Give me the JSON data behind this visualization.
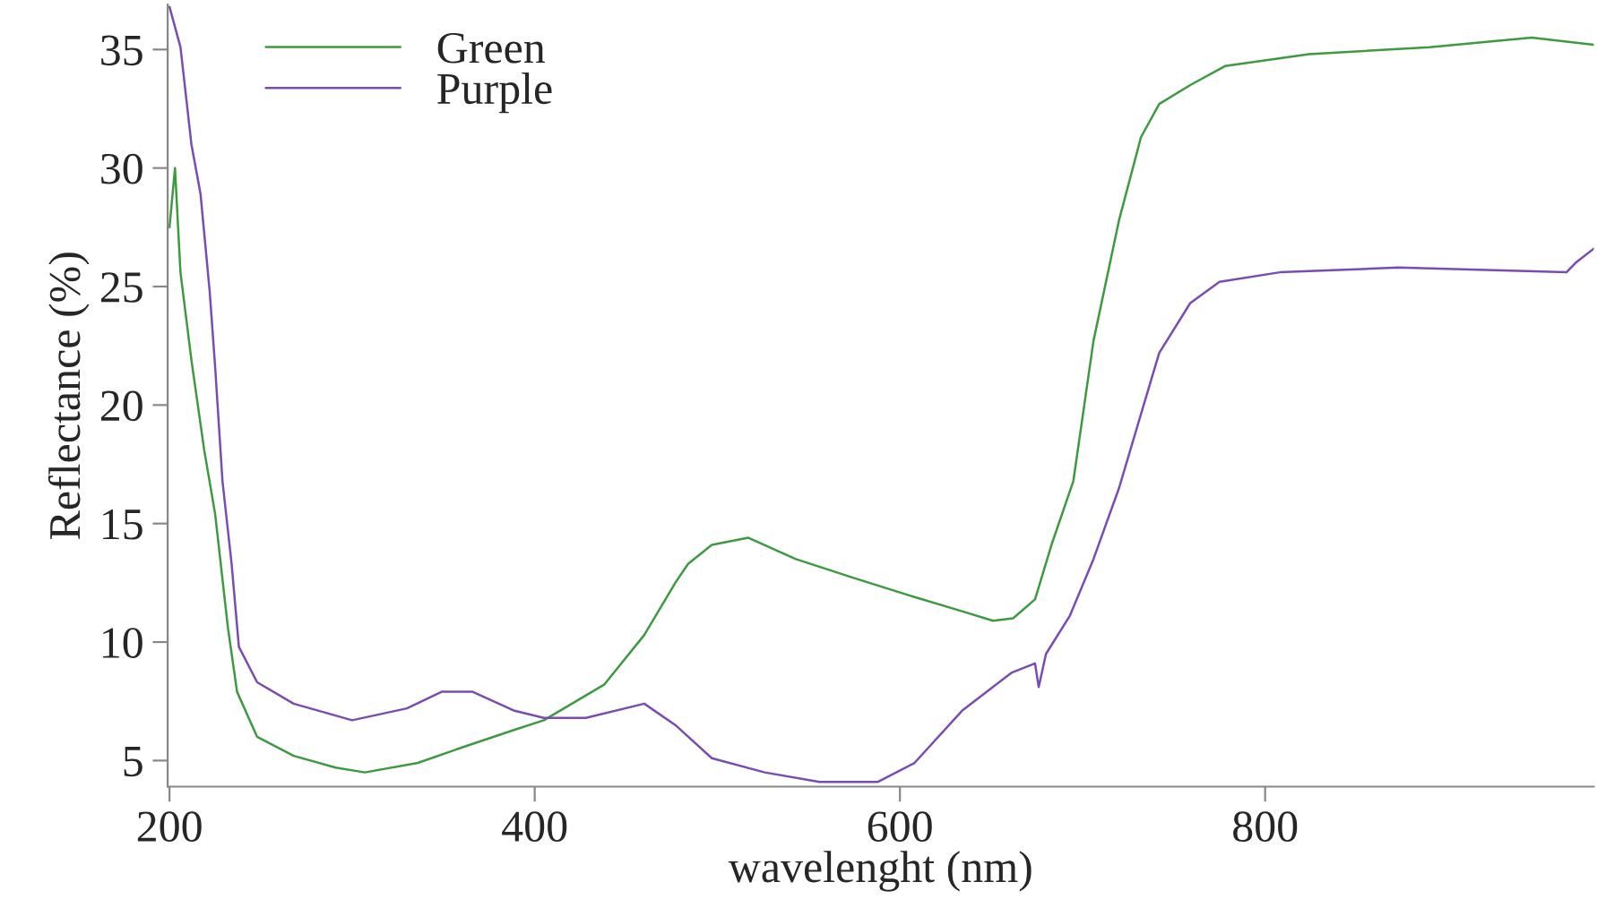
{
  "chart_data": {
    "type": "line",
    "xlabel": "wavelenght (nm)",
    "ylabel": "Reflectance (%)",
    "xlim": [
      199,
      980
    ],
    "ylim": [
      3.9,
      36.9
    ],
    "xticks": [
      200,
      400,
      600,
      800
    ],
    "yticks": [
      5,
      10,
      15,
      20,
      25,
      30,
      35
    ],
    "grid": false,
    "legend": "top left",
    "marker": "none",
    "line_style": "solid",
    "series": [
      {
        "name": "Green",
        "color": "#3c9a40",
        "x": [
          200,
          203,
          206,
          212,
          219,
          225,
          232,
          237,
          248,
          268,
          291,
          307,
          336,
          362,
          389,
          405,
          438,
          460,
          477,
          484,
          497,
          517,
          543,
          575,
          608,
          634,
          651,
          662,
          674,
          683,
          695,
          706,
          720,
          732,
          742,
          759,
          778,
          824,
          890,
          946,
          980
        ],
        "values": [
          27.5,
          30.0,
          25.6,
          21.9,
          18.1,
          15.4,
          10.6,
          7.9,
          6.0,
          5.2,
          4.7,
          4.5,
          4.9,
          5.6,
          6.3,
          6.7,
          8.2,
          10.3,
          12.5,
          13.3,
          14.1,
          14.4,
          13.5,
          12.7,
          11.9,
          11.3,
          10.9,
          11.0,
          11.8,
          14.1,
          16.8,
          22.7,
          27.8,
          31.3,
          32.7,
          33.5,
          34.3,
          34.8,
          35.1,
          35.5,
          35.2
        ]
      },
      {
        "name": "Purple",
        "color": "#7a4cb2",
        "x": [
          200,
          206,
          212,
          217,
          222,
          225,
          229,
          234,
          238,
          248,
          268,
          300,
          330,
          349,
          366,
          389,
          405,
          428,
          460,
          477,
          497,
          526,
          556,
          588,
          608,
          634,
          661,
          674,
          676,
          680,
          693,
          706,
          720,
          742,
          759,
          775,
          808,
          873,
          965,
          970,
          980
        ],
        "values": [
          36.8,
          35.1,
          31.0,
          28.9,
          24.8,
          21.6,
          16.8,
          13.3,
          9.8,
          8.3,
          7.4,
          6.7,
          7.2,
          7.9,
          7.9,
          7.1,
          6.8,
          6.8,
          7.4,
          6.5,
          5.1,
          4.5,
          4.1,
          4.1,
          4.9,
          7.1,
          8.7,
          9.1,
          8.1,
          9.5,
          11.1,
          13.5,
          16.5,
          22.2,
          24.3,
          25.2,
          25.6,
          25.8,
          25.6,
          26.0,
          26.6
        ]
      }
    ]
  }
}
